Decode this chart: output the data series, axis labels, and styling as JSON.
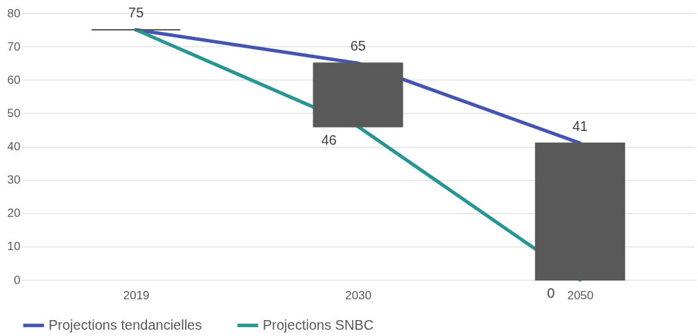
{
  "chart_data": {
    "type": "line",
    "categories": [
      "2019",
      "2030",
      "2050"
    ],
    "series": [
      {
        "name": "Projections tendancielles",
        "color": "#4355b0",
        "values": [
          75,
          65,
          41
        ],
        "value_labels": [
          "75",
          "65",
          "41"
        ]
      },
      {
        "name": "Projections SNBC",
        "color": "#279593",
        "values": [
          75,
          46,
          0
        ],
        "value_labels": [
          null,
          "46",
          "0"
        ]
      },
      {
        "type": "bar",
        "color": "#595959",
        "base": [
          75,
          46,
          0
        ],
        "values": [
          0,
          19,
          41
        ]
      }
    ],
    "ylim": [
      0,
      80
    ],
    "yticks": [
      0,
      10,
      20,
      30,
      40,
      50,
      60,
      70,
      80
    ],
    "grid": "y",
    "legend": "bottom"
  }
}
